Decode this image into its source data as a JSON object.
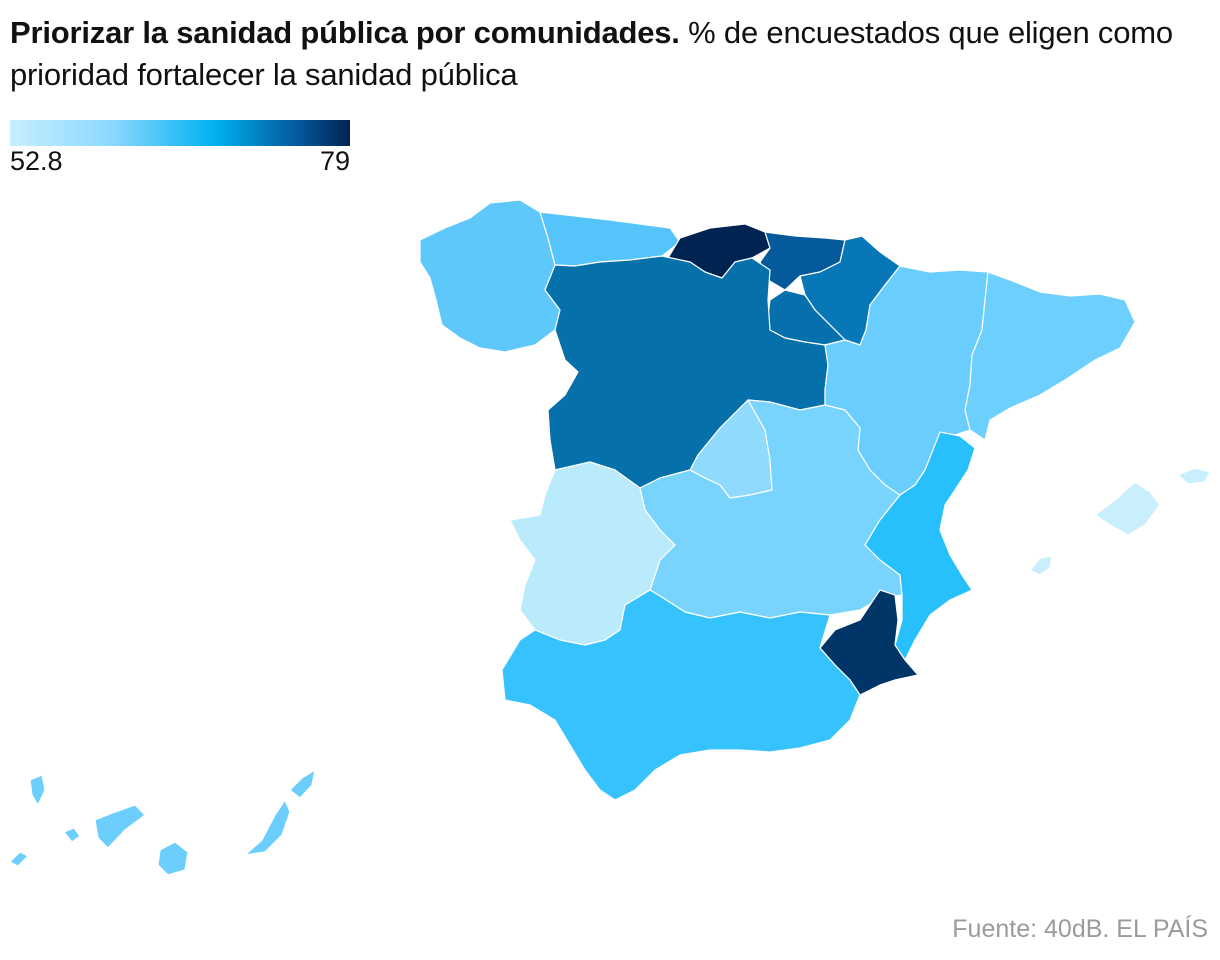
{
  "title": {
    "bold": "Priorizar la sanidad pública por comunidades.",
    "subtitle": " % de encuestados que eligen como prioridad fortalecer la sanidad pública"
  },
  "legend": {
    "min": "52.8",
    "max": "79",
    "colors": [
      "#c6efff",
      "#8cd8ff",
      "#00b2f0",
      "#04579b",
      "#002251"
    ]
  },
  "source": "Fuente: 40dB. EL PAÍS",
  "regions": {
    "galicia": "#5ec8fb",
    "asturias": "#55c4fb",
    "cantabria": "#002452",
    "pais_vasco": "#045a9a",
    "navarra": "#0777b8",
    "la_rioja": "#0670ad",
    "castilla_leon": "#0670ab",
    "aragon": "#69cdfd",
    "cataluna": "#6dcffd",
    "madrid": "#8fdafd",
    "castilla_la_mancha": "#78d3fd",
    "extremadura": "#b9ebfd",
    "valencia": "#27c0fd",
    "murcia": "#003667",
    "andalucia": "#36c2fd",
    "baleares": "#c9effd",
    "canarias": "#6bcefd"
  }
}
